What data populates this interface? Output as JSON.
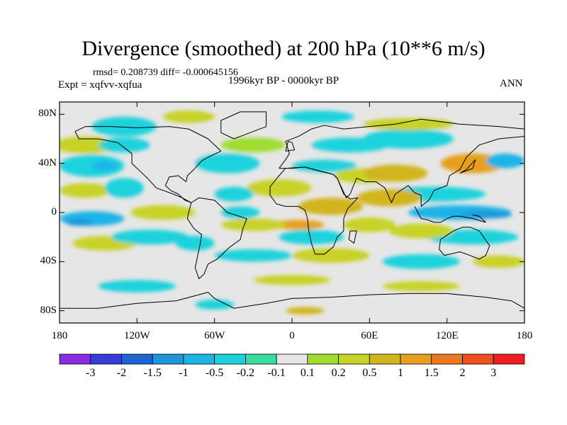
{
  "title": "Divergence (smoothed) at 200 hPa (10**6 m/s)",
  "stats": "rmsd= 0.208739 diff= -0.000645156",
  "experiment": "Expt = xqfvv-xqfua",
  "period": "1996kyr BP - 0000kyr BP",
  "season": "ANN",
  "lat_ticks": [
    {
      "label": "80N",
      "lat": 80
    },
    {
      "label": "40N",
      "lat": 40
    },
    {
      "label": "0",
      "lat": 0
    },
    {
      "label": "40S",
      "lat": -40
    },
    {
      "label": "80S",
      "lat": -80
    }
  ],
  "lon_ticks": [
    {
      "label": "180",
      "lon": -180
    },
    {
      "label": "120W",
      "lon": -120
    },
    {
      "label": "60W",
      "lon": -60
    },
    {
      "label": "0",
      "lon": 0
    },
    {
      "label": "60E",
      "lon": 60
    },
    {
      "label": "120E",
      "lon": 120
    },
    {
      "label": "180",
      "lon": 180
    }
  ],
  "colorbar": {
    "colors": [
      "#8a2be2",
      "#3a3ad6",
      "#1e64d2",
      "#1e96dc",
      "#1eb4e6",
      "#1ed2dc",
      "#3cdca0",
      "#e6e6e6",
      "#a0dc32",
      "#c8d228",
      "#d2b41e",
      "#e6a01e",
      "#ec781e",
      "#f0501e",
      "#f01e1e"
    ],
    "labels": [
      "-3",
      "-2",
      "-1.5",
      "-1",
      "-0.5",
      "-0.2",
      "-0.1",
      "0.1",
      "0.2",
      "0.5",
      "1",
      "1.5",
      "2",
      "3"
    ]
  },
  "field_blobs": [
    {
      "lon": 20,
      "lat": 78,
      "rlon": 28,
      "rlat": 5,
      "color": "#1ed2dc"
    },
    {
      "lon": -80,
      "lat": 78,
      "rlon": 20,
      "rlat": 5,
      "color": "#c8d228"
    },
    {
      "lon": -130,
      "lat": 70,
      "rlon": 25,
      "rlat": 8,
      "color": "#1ed2dc"
    },
    {
      "lon": -160,
      "lat": 55,
      "rlon": 25,
      "rlat": 7,
      "color": "#c8d228"
    },
    {
      "lon": -155,
      "lat": 38,
      "rlon": 25,
      "rlat": 9,
      "color": "#1ed2dc"
    },
    {
      "lon": -145,
      "lat": 38,
      "rlon": 10,
      "rlat": 4,
      "color": "#1eb4e6"
    },
    {
      "lon": -130,
      "lat": 55,
      "rlon": 20,
      "rlat": 6,
      "color": "#1ed2dc"
    },
    {
      "lon": -160,
      "lat": 18,
      "rlon": 20,
      "rlat": 6,
      "color": "#c8d228"
    },
    {
      "lon": -130,
      "lat": 20,
      "rlon": 15,
      "rlat": 8,
      "color": "#1ed2dc"
    },
    {
      "lon": -50,
      "lat": 40,
      "rlon": 25,
      "rlat": 8,
      "color": "#1ed2dc"
    },
    {
      "lon": -30,
      "lat": 55,
      "rlon": 25,
      "rlat": 6,
      "color": "#a0dc32"
    },
    {
      "lon": -10,
      "lat": 20,
      "rlon": 25,
      "rlat": 7,
      "color": "#c8d228"
    },
    {
      "lon": -45,
      "lat": 15,
      "rlon": 15,
      "rlat": 6,
      "color": "#1ed2dc"
    },
    {
      "lon": 45,
      "lat": 55,
      "rlon": 30,
      "rlat": 6,
      "color": "#1ed2dc"
    },
    {
      "lon": 90,
      "lat": 60,
      "rlon": 35,
      "rlat": 8,
      "color": "#1ed2dc"
    },
    {
      "lon": 90,
      "lat": 72,
      "rlon": 35,
      "rlat": 5,
      "color": "#c8d228"
    },
    {
      "lon": 25,
      "lat": 38,
      "rlon": 25,
      "rlat": 5,
      "color": "#1ed2dc"
    },
    {
      "lon": 55,
      "lat": 30,
      "rlon": 22,
      "rlat": 6,
      "color": "#c8d228"
    },
    {
      "lon": 80,
      "lat": 32,
      "rlon": 25,
      "rlat": 7,
      "color": "#d2b41e"
    },
    {
      "lon": 140,
      "lat": 40,
      "rlon": 25,
      "rlat": 8,
      "color": "#e6a01e"
    },
    {
      "lon": 165,
      "lat": 42,
      "rlon": 15,
      "rlat": 6,
      "color": "#1eb4e6"
    },
    {
      "lon": 110,
      "lat": 15,
      "rlon": 40,
      "rlat": 6,
      "color": "#1ed2dc"
    },
    {
      "lon": 75,
      "lat": 12,
      "rlon": 25,
      "rlat": 7,
      "color": "#d2b41e"
    },
    {
      "lon": 130,
      "lat": 0,
      "rlon": 40,
      "rlat": 6,
      "color": "#1eb4e6"
    },
    {
      "lon": 150,
      "lat": -2,
      "rlon": 20,
      "rlat": 3,
      "color": "#1e96dc"
    },
    {
      "lon": 140,
      "lat": -20,
      "rlon": 35,
      "rlat": 6,
      "color": "#1ed2dc"
    },
    {
      "lon": 100,
      "lat": -15,
      "rlon": 25,
      "rlat": 6,
      "color": "#c8d228"
    },
    {
      "lon": 60,
      "lat": -10,
      "rlon": 20,
      "rlat": 6,
      "color": "#c8d228"
    },
    {
      "lon": 30,
      "lat": 5,
      "rlon": 25,
      "rlat": 7,
      "color": "#d2b41e"
    },
    {
      "lon": 15,
      "lat": -20,
      "rlon": 25,
      "rlat": 6,
      "color": "#1ed2dc"
    },
    {
      "lon": 5,
      "lat": -10,
      "rlon": 20,
      "rlat": 4,
      "color": "#e6a01e"
    },
    {
      "lon": -30,
      "lat": -10,
      "rlon": 25,
      "rlat": 5,
      "color": "#c8d228"
    },
    {
      "lon": -40,
      "lat": 0,
      "rlon": 15,
      "rlat": 5,
      "color": "#1ed2dc"
    },
    {
      "lon": -100,
      "lat": 0,
      "rlon": 25,
      "rlat": 6,
      "color": "#c8d228"
    },
    {
      "lon": -155,
      "lat": -5,
      "rlon": 25,
      "rlat": 6,
      "color": "#1eb4e6"
    },
    {
      "lon": -165,
      "lat": -8,
      "rlon": 10,
      "rlat": 3,
      "color": "#1e96dc"
    },
    {
      "lon": -145,
      "lat": -25,
      "rlon": 25,
      "rlat": 6,
      "color": "#c8d228"
    },
    {
      "lon": -110,
      "lat": -20,
      "rlon": 30,
      "rlat": 6,
      "color": "#1ed2dc"
    },
    {
      "lon": -75,
      "lat": -25,
      "rlon": 15,
      "rlat": 6,
      "color": "#1ed2dc"
    },
    {
      "lon": -30,
      "lat": -35,
      "rlon": 30,
      "rlat": 5,
      "color": "#1ed2dc"
    },
    {
      "lon": 30,
      "lat": -35,
      "rlon": 30,
      "rlat": 6,
      "color": "#c8d228"
    },
    {
      "lon": 100,
      "lat": -40,
      "rlon": 30,
      "rlat": 6,
      "color": "#1ed2dc"
    },
    {
      "lon": 160,
      "lat": -40,
      "rlon": 20,
      "rlat": 5,
      "color": "#c8d228"
    },
    {
      "lon": -120,
      "lat": -60,
      "rlon": 30,
      "rlat": 5,
      "color": "#1ed2dc"
    },
    {
      "lon": 0,
      "lat": -55,
      "rlon": 30,
      "rlat": 4,
      "color": "#c8d228"
    },
    {
      "lon": 100,
      "lat": -60,
      "rlon": 30,
      "rlat": 4,
      "color": "#c8d228"
    },
    {
      "lon": -60,
      "lat": -75,
      "rlon": 15,
      "rlat": 4,
      "color": "#1ed2dc"
    },
    {
      "lon": 10,
      "lat": -80,
      "rlon": 15,
      "rlat": 3,
      "color": "#d2b41e"
    }
  ],
  "coastlines": [
    [
      [
        -168,
        66
      ],
      [
        -160,
        70
      ],
      [
        -140,
        70
      ],
      [
        -120,
        69
      ],
      [
        -95,
        70
      ],
      [
        -80,
        68
      ],
      [
        -65,
        60
      ],
      [
        -60,
        55
      ],
      [
        -55,
        50
      ],
      [
        -65,
        45
      ],
      [
        -70,
        42
      ],
      [
        -76,
        35
      ],
      [
        -81,
        30
      ],
      [
        -82,
        25
      ],
      [
        -88,
        30
      ],
      [
        -95,
        29
      ],
      [
        -98,
        22
      ],
      [
        -94,
        18
      ],
      [
        -88,
        15
      ],
      [
        -83,
        10
      ],
      [
        -78,
        8
      ],
      [
        -85,
        12
      ],
      [
        -92,
        15
      ],
      [
        -105,
        20
      ],
      [
        -112,
        28
      ],
      [
        -117,
        33
      ],
      [
        -124,
        40
      ],
      [
        -124,
        48
      ],
      [
        -135,
        57
      ],
      [
        -150,
        60
      ],
      [
        -165,
        60
      ],
      [
        -168,
        66
      ]
    ],
    [
      [
        -78,
        8
      ],
      [
        -72,
        12
      ],
      [
        -60,
        10
      ],
      [
        -50,
        0
      ],
      [
        -35,
        -5
      ],
      [
        -38,
        -13
      ],
      [
        -40,
        -22
      ],
      [
        -48,
        -28
      ],
      [
        -58,
        -38
      ],
      [
        -65,
        -42
      ],
      [
        -68,
        -50
      ],
      [
        -72,
        -54
      ],
      [
        -75,
        -45
      ],
      [
        -73,
        -35
      ],
      [
        -71,
        -25
      ],
      [
        -70,
        -18
      ],
      [
        -76,
        -13
      ],
      [
        -81,
        -5
      ],
      [
        -80,
        0
      ],
      [
        -78,
        8
      ]
    ],
    [
      [
        -10,
        36
      ],
      [
        -5,
        43
      ],
      [
        -2,
        48
      ],
      [
        -5,
        58
      ],
      [
        5,
        62
      ],
      [
        15,
        68
      ],
      [
        25,
        71
      ],
      [
        40,
        68
      ],
      [
        60,
        70
      ],
      [
        80,
        72
      ],
      [
        100,
        76
      ],
      [
        130,
        72
      ],
      [
        160,
        70
      ],
      [
        180,
        68
      ]
    ],
    [
      [
        180,
        62
      ],
      [
        160,
        60
      ],
      [
        145,
        55
      ],
      [
        135,
        45
      ],
      [
        130,
        35
      ],
      [
        122,
        30
      ],
      [
        120,
        22
      ],
      [
        110,
        18
      ],
      [
        106,
        10
      ],
      [
        100,
        5
      ],
      [
        100,
        14
      ],
      [
        95,
        16
      ],
      [
        90,
        22
      ],
      [
        80,
        15
      ],
      [
        77,
        8
      ],
      [
        72,
        20
      ],
      [
        65,
        25
      ],
      [
        57,
        25
      ],
      [
        50,
        28
      ],
      [
        45,
        15
      ],
      [
        42,
        12
      ],
      [
        35,
        28
      ],
      [
        32,
        31
      ],
      [
        20,
        34
      ],
      [
        10,
        37
      ],
      [
        0,
        36
      ],
      [
        -10,
        36
      ]
    ],
    [
      [
        -17,
        21
      ],
      [
        -17,
        14
      ],
      [
        -12,
        7
      ],
      [
        -5,
        5
      ],
      [
        5,
        5
      ],
      [
        10,
        2
      ],
      [
        12,
        -5
      ],
      [
        13,
        -15
      ],
      [
        15,
        -25
      ],
      [
        18,
        -34
      ],
      [
        25,
        -34
      ],
      [
        32,
        -28
      ],
      [
        35,
        -20
      ],
      [
        40,
        -15
      ],
      [
        40,
        -5
      ],
      [
        43,
        3
      ],
      [
        51,
        12
      ],
      [
        45,
        11
      ],
      [
        40,
        15
      ],
      [
        35,
        28
      ],
      [
        32,
        31
      ],
      [
        10,
        37
      ],
      [
        -5,
        36
      ],
      [
        -10,
        30
      ],
      [
        -17,
        21
      ]
    ],
    [
      [
        115,
        -22
      ],
      [
        114,
        -30
      ],
      [
        118,
        -35
      ],
      [
        130,
        -32
      ],
      [
        138,
        -35
      ],
      [
        145,
        -38
      ],
      [
        150,
        -35
      ],
      [
        153,
        -27
      ],
      [
        145,
        -15
      ],
      [
        138,
        -12
      ],
      [
        132,
        -12
      ],
      [
        125,
        -15
      ],
      [
        115,
        -22
      ]
    ],
    [
      [
        95,
        5
      ],
      [
        100,
        -5
      ],
      [
        105,
        -6
      ],
      [
        110,
        -8
      ],
      [
        115,
        -8
      ],
      [
        120,
        -5
      ],
      [
        125,
        -3
      ],
      [
        130,
        -3
      ],
      [
        140,
        -5
      ],
      [
        150,
        -8
      ],
      [
        145,
        -3
      ],
      [
        140,
        -2
      ]
    ],
    [
      [
        -180,
        -78
      ],
      [
        -150,
        -78
      ],
      [
        -120,
        -74
      ],
      [
        -90,
        -72
      ],
      [
        -65,
        -65
      ],
      [
        -60,
        -70
      ],
      [
        -45,
        -78
      ],
      [
        -20,
        -74
      ],
      [
        0,
        -70
      ],
      [
        30,
        -69
      ],
      [
        60,
        -67
      ],
      [
        90,
        -66
      ],
      [
        120,
        -66
      ],
      [
        150,
        -69
      ],
      [
        170,
        -72
      ],
      [
        180,
        -78
      ]
    ],
    [
      [
        -45,
        60
      ],
      [
        -55,
        65
      ],
      [
        -55,
        75
      ],
      [
        -40,
        82
      ],
      [
        -20,
        82
      ],
      [
        -20,
        70
      ],
      [
        -40,
        62
      ],
      [
        -45,
        60
      ]
    ],
    [
      [
        -5,
        50
      ],
      [
        -3,
        58
      ],
      [
        0,
        57
      ],
      [
        2,
        51
      ],
      [
        -5,
        50
      ]
    ],
    [
      [
        45,
        -15
      ],
      [
        50,
        -15
      ],
      [
        48,
        -25
      ],
      [
        44,
        -22
      ],
      [
        45,
        -15
      ]
    ],
    [
      [
        130,
        32
      ],
      [
        135,
        35
      ],
      [
        142,
        43
      ],
      [
        140,
        36
      ],
      [
        130,
        32
      ]
    ]
  ]
}
